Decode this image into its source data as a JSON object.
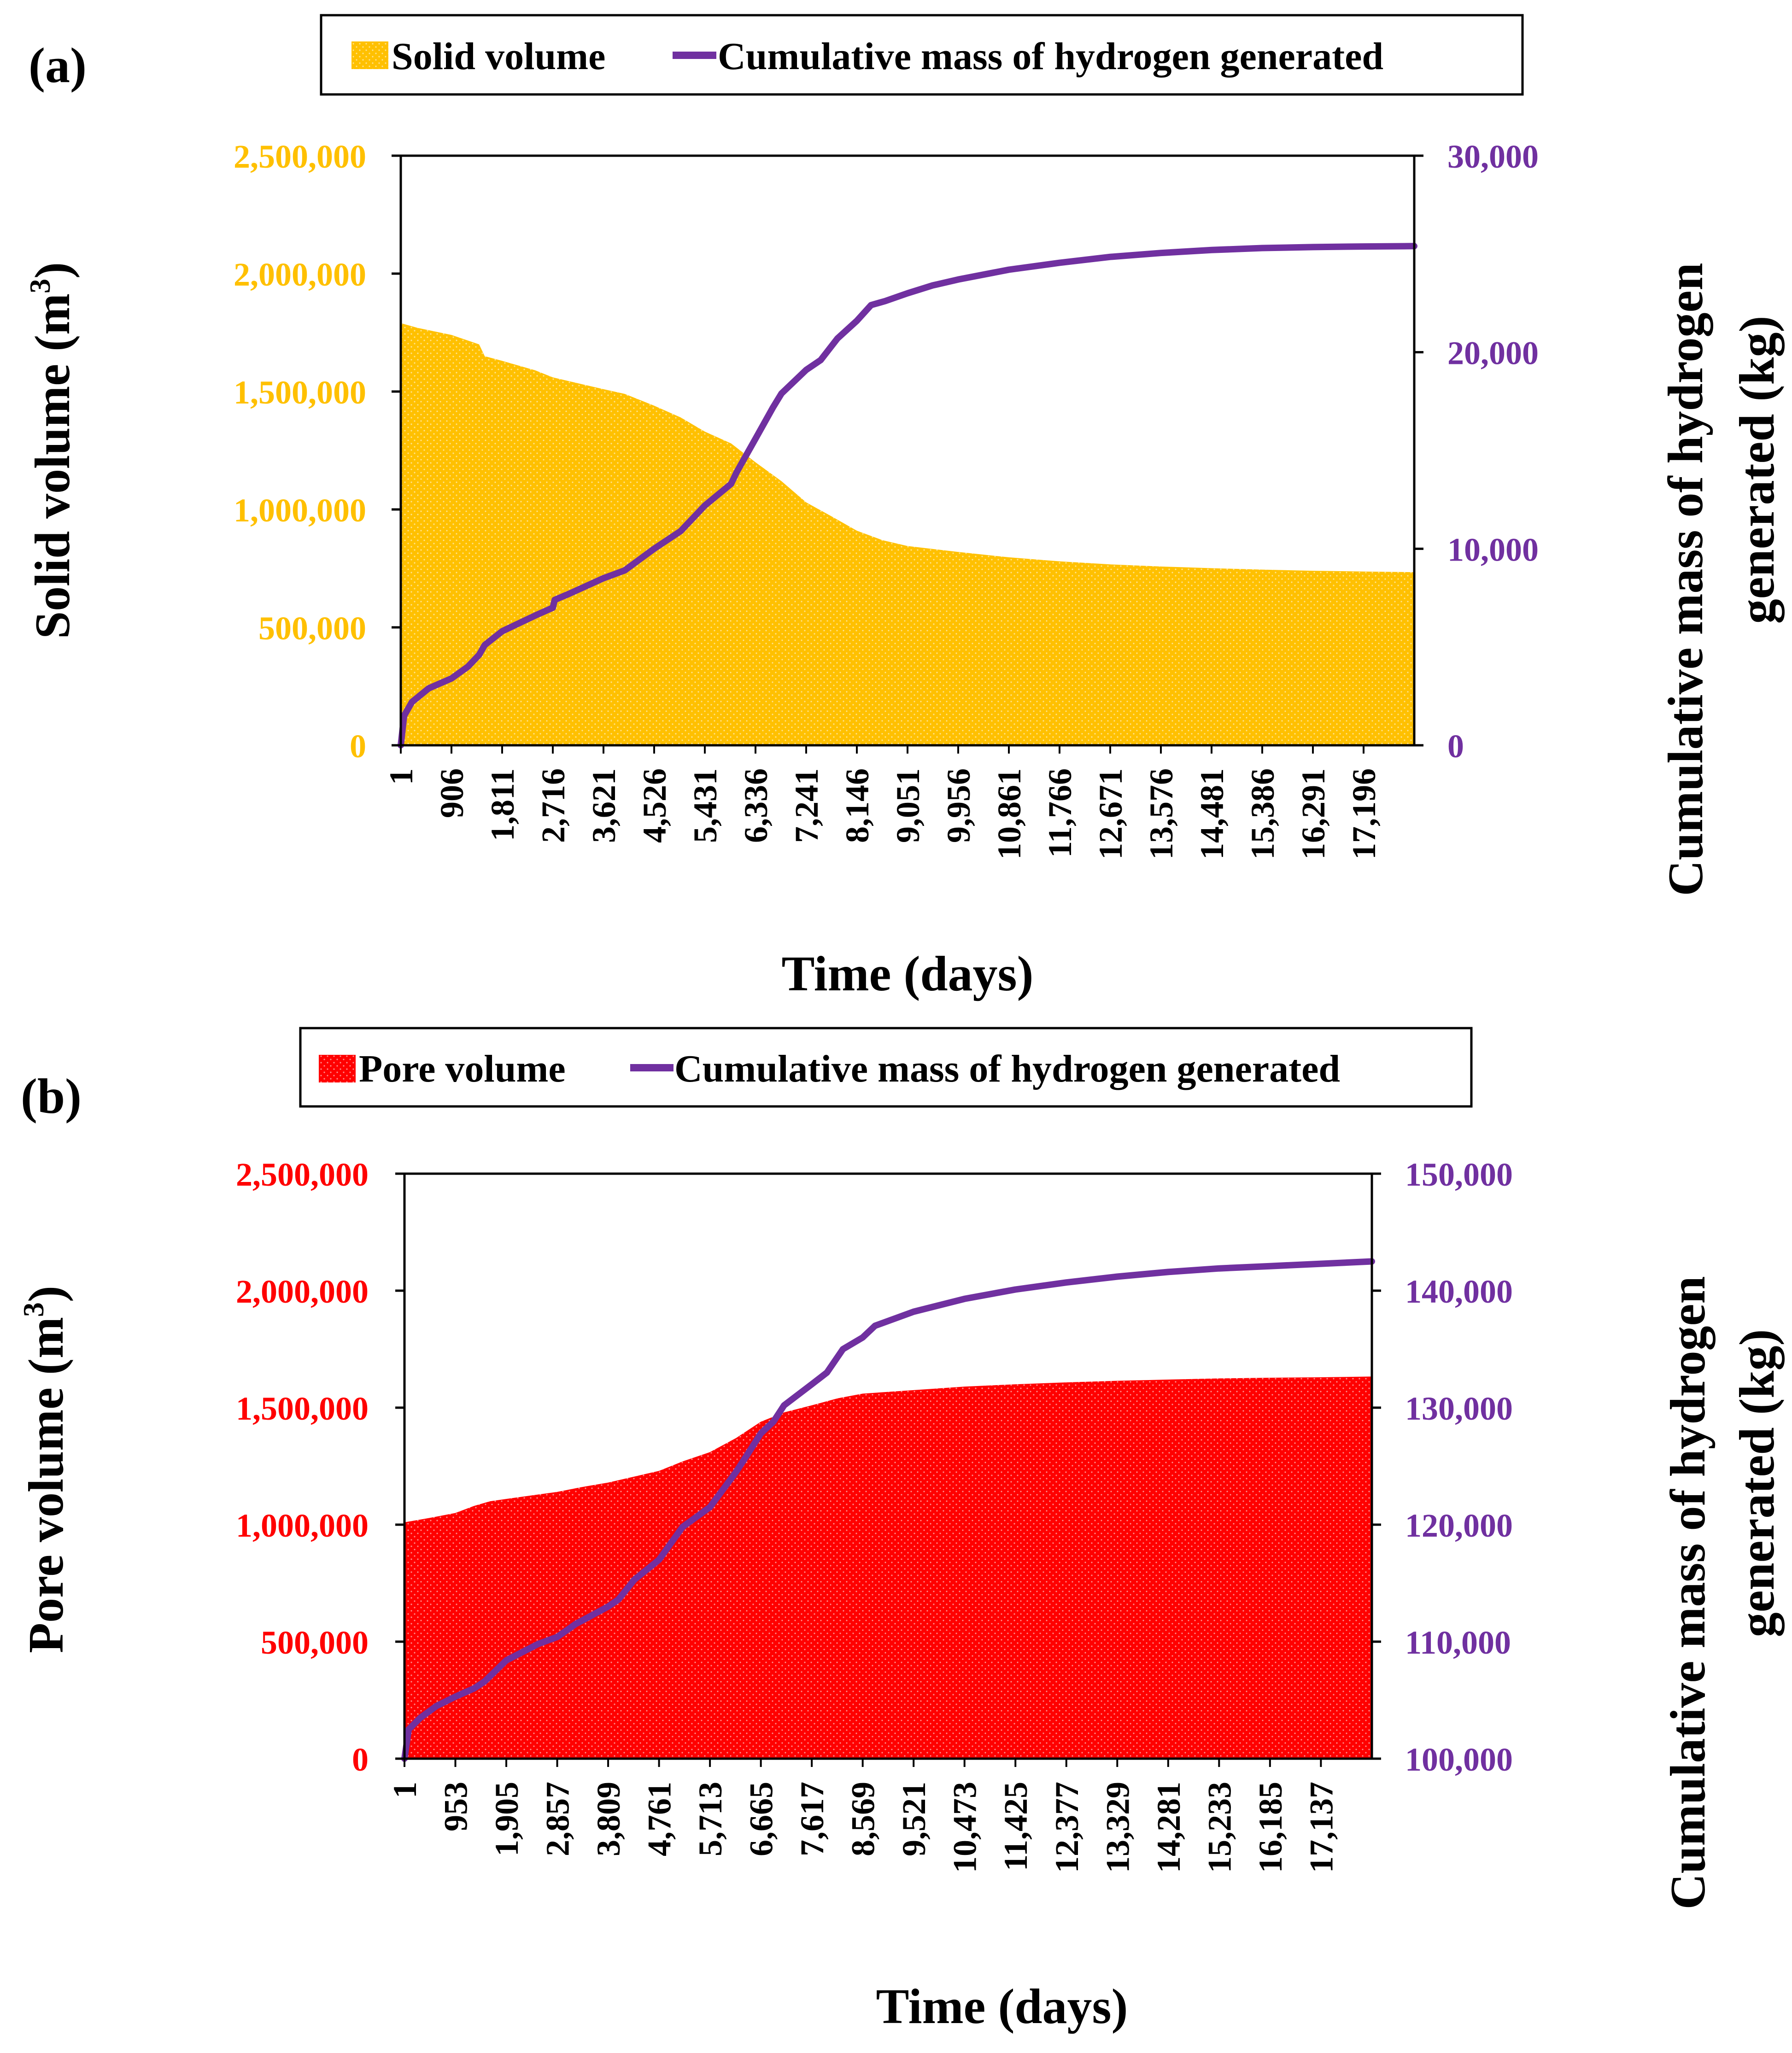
{
  "colors": {
    "solid": "#FFC000",
    "pore": "#FF0000",
    "hydrogen": "#7030A0",
    "axis": "#000000"
  },
  "chart_data": [
    {
      "type": "area",
      "panel_label": "(a)",
      "xlabel": "Time (days)",
      "ylabel_left": "Solid volume (m",
      "ylabel_left_sup": "3",
      "ylabel_left_end": ")",
      "ylabel_right_line1": "Cumulative mass of hydrogen",
      "ylabel_right_line2": "generated (kg)",
      "x_range": [
        1,
        18101
      ],
      "x_ticks": [
        1,
        906,
        1811,
        2716,
        3621,
        4526,
        5431,
        6336,
        7241,
        8146,
        9051,
        9956,
        10861,
        11766,
        12671,
        13576,
        14481,
        15386,
        16291,
        17196
      ],
      "x_tick_labels": [
        "1",
        "906",
        "1,811",
        "2,716",
        "3,621",
        "4,526",
        "5,431",
        "6,336",
        "7,241",
        "8,146",
        "9,051",
        "9,956",
        "10,861",
        "11,766",
        "12,671",
        "13,576",
        "14,481",
        "15,386",
        "16,291",
        "17,196"
      ],
      "y_left_range": [
        0,
        2500000
      ],
      "y_left_ticks": [
        0,
        500000,
        1000000,
        1500000,
        2000000,
        2500000
      ],
      "y_left_tick_labels": [
        "0",
        "500,000",
        "1,000,000",
        "1,500,000",
        "2,000,000",
        "2,500,000"
      ],
      "y_right_range": [
        0,
        30000
      ],
      "y_right_ticks": [
        0,
        10000,
        20000,
        30000
      ],
      "y_right_tick_labels": [
        "0",
        "10,000",
        "20,000",
        "30,000"
      ],
      "legend": {
        "area_label": "Solid volume",
        "line_label": "Cumulative mass of hydrogen generated",
        "position": "top-center"
      },
      "series": [
        {
          "name": "Solid volume",
          "axis": "left",
          "kind": "area",
          "x": [
            1,
            300,
            906,
            1400,
            1500,
            1811,
            2400,
            2716,
            3621,
            4000,
            4526,
            5000,
            5431,
            5900,
            6336,
            6800,
            7241,
            7700,
            8146,
            8600,
            9051,
            9956,
            10861,
            11766,
            12671,
            13576,
            14481,
            15386,
            16291,
            17196,
            18101
          ],
          "values": [
            1790000,
            1770000,
            1740000,
            1700000,
            1650000,
            1630000,
            1590000,
            1560000,
            1510000,
            1490000,
            1440000,
            1390000,
            1330000,
            1280000,
            1200000,
            1120000,
            1030000,
            970000,
            910000,
            870000,
            845000,
            820000,
            797000,
            780000,
            767000,
            758000,
            751000,
            745000,
            740000,
            737000,
            734000
          ]
        },
        {
          "name": "Cumulative mass of hydrogen generated",
          "axis": "right",
          "kind": "line",
          "x": [
            1,
            60,
            200,
            500,
            906,
            1200,
            1400,
            1500,
            1811,
            2400,
            2716,
            2750,
            3000,
            3621,
            4000,
            4526,
            5000,
            5431,
            5900,
            6000,
            6336,
            6650,
            6800,
            7241,
            7500,
            7800,
            8146,
            8400,
            8650,
            9051,
            9500,
            9956,
            10861,
            11766,
            12671,
            13576,
            14481,
            15386,
            16291,
            17196,
            18101
          ],
          "values": [
            0,
            1500,
            2200,
            2900,
            3400,
            4000,
            4600,
            5100,
            5800,
            6600,
            7000,
            7400,
            7700,
            8500,
            8900,
            10000,
            10900,
            12200,
            13300,
            13900,
            15600,
            17200,
            17900,
            19100,
            19600,
            20700,
            21600,
            22400,
            22600,
            23000,
            23400,
            23700,
            24200,
            24550,
            24850,
            25050,
            25200,
            25300,
            25350,
            25380,
            25400
          ]
        }
      ]
    },
    {
      "type": "area",
      "panel_label": "(b)",
      "xlabel": "Time (days)",
      "ylabel_left": "Pore volume (m",
      "ylabel_left_sup": "3",
      "ylabel_left_end": ")",
      "ylabel_right_line1": "Cumulative mass of hydrogen",
      "ylabel_right_line2": "generated (kg)",
      "x_range": [
        1,
        18090
      ],
      "x_ticks": [
        1,
        953,
        1905,
        2857,
        3809,
        4761,
        5713,
        6665,
        7617,
        8569,
        9521,
        10473,
        11425,
        12377,
        13329,
        14281,
        15233,
        16185,
        17137
      ],
      "x_tick_labels": [
        "1",
        "953",
        "1,905",
        "2,857",
        "3,809",
        "4,761",
        "5,713",
        "6,665",
        "7,617",
        "8,569",
        "9,521",
        "10,473",
        "11,425",
        "12,377",
        "13,329",
        "14,281",
        "15,233",
        "16,185",
        "17,137"
      ],
      "y_left_range": [
        0,
        2500000
      ],
      "y_left_ticks": [
        0,
        500000,
        1000000,
        1500000,
        2000000,
        2500000
      ],
      "y_left_tick_labels": [
        "0",
        "500,000",
        "1,000,000",
        "1,500,000",
        "2,000,000",
        "2,500,000"
      ],
      "y_right_range": [
        100000,
        150000
      ],
      "y_right_ticks": [
        100000,
        110000,
        120000,
        130000,
        140000,
        150000
      ],
      "y_right_tick_labels": [
        "100,000",
        "110,000",
        "120,000",
        "130,000",
        "140,000",
        "150,000"
      ],
      "legend": {
        "area_label": "Pore volume",
        "line_label": "Cumulative mass of hydrogen generated",
        "position": "top-center"
      },
      "series": [
        {
          "name": "Pore volume",
          "axis": "left",
          "kind": "area",
          "x": [
            1,
            500,
            953,
            1300,
            1600,
            1905,
            2857,
            3300,
            3809,
            4761,
            5200,
            5713,
            6200,
            6665,
            7100,
            7617,
            8100,
            8569,
            9521,
            10473,
            11425,
            12377,
            13329,
            14281,
            15233,
            16185,
            17137,
            18090
          ],
          "values": [
            1010000,
            1030000,
            1050000,
            1080000,
            1100000,
            1110000,
            1140000,
            1160000,
            1180000,
            1230000,
            1270000,
            1310000,
            1370000,
            1440000,
            1480000,
            1510000,
            1540000,
            1560000,
            1575000,
            1590000,
            1600000,
            1608000,
            1615000,
            1620000,
            1625000,
            1628000,
            1630000,
            1633000
          ]
        },
        {
          "name": "Cumulative mass of hydrogen generated",
          "axis": "right",
          "kind": "line",
          "x": [
            1,
            80,
            300,
            600,
            953,
            1300,
            1500,
            1905,
            2500,
            2857,
            3200,
            3809,
            4000,
            4300,
            4761,
            5200,
            5713,
            6200,
            6400,
            6665,
            6900,
            7100,
            7617,
            7900,
            8200,
            8569,
            8800,
            9521,
            10473,
            11425,
            12377,
            13329,
            14281,
            15233,
            16185,
            17137,
            18090
          ],
          "values": [
            100000,
            102500,
            103500,
            104500,
            105300,
            106000,
            106600,
            108400,
            109800,
            110400,
            111500,
            113000,
            113600,
            115300,
            117000,
            119800,
            121500,
            124500,
            125900,
            127800,
            128800,
            130200,
            132000,
            133000,
            135000,
            136000,
            137000,
            138200,
            139300,
            140100,
            140700,
            141200,
            141600,
            141900,
            142100,
            142300,
            142500
          ]
        }
      ]
    }
  ]
}
